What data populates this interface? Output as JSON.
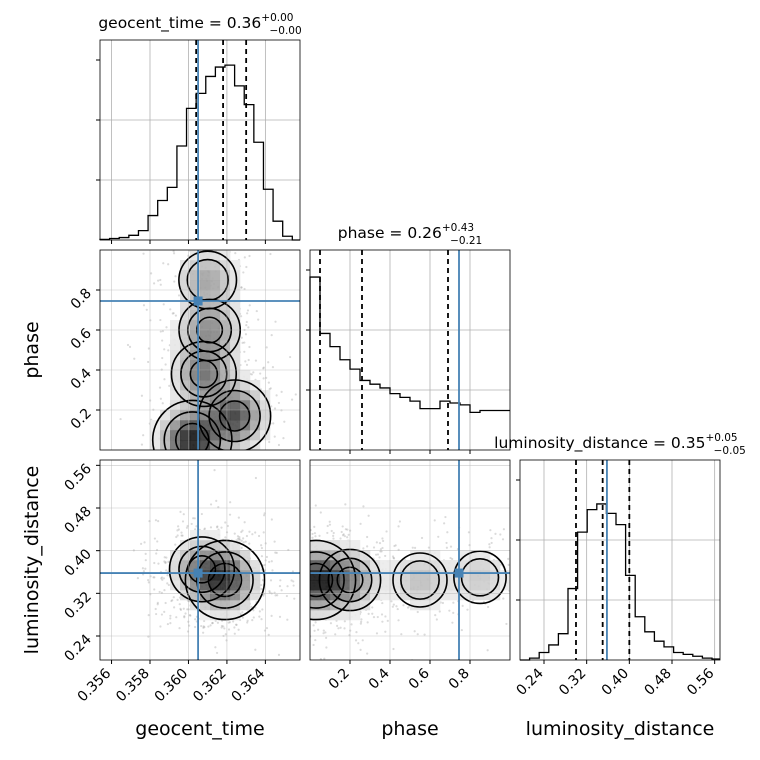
{
  "chart_data": {
    "type": "corner",
    "parameters": [
      "geocent_time",
      "phase",
      "luminosity_distance"
    ],
    "truths": {
      "geocent_time": 0.3605,
      "phase": 0.745,
      "luminosity_distance": 0.358
    },
    "diag_titles": [
      {
        "name": "geocent_time",
        "eq": " = 0.36",
        "sup": "+0.00",
        "sub": "−0.00"
      },
      {
        "name": "phase",
        "eq": " = 0.26",
        "sup": "+0.43",
        "sub": "−0.21"
      },
      {
        "name": "luminosity_distance",
        "eq": " = 0.35",
        "sup": "+0.05",
        "sub": "−0.05"
      }
    ],
    "axes": {
      "geocent_time": {
        "range": [
          0.3554,
          0.3658
        ],
        "ticks": [
          0.356,
          0.358,
          0.36,
          0.362,
          0.364
        ],
        "tick_labels": [
          "0.356",
          "0.358",
          "0.360",
          "0.362",
          "0.364"
        ]
      },
      "phase": {
        "range": [
          0.0,
          1.0
        ],
        "ticks": [
          0.2,
          0.4,
          0.6,
          0.8
        ],
        "tick_labels": [
          "0.2",
          "0.4",
          "0.6",
          "0.8"
        ]
      },
      "luminosity_distance": {
        "range": [
          0.195,
          0.57
        ],
        "ticks": [
          0.24,
          0.32,
          0.4,
          0.48,
          0.56
        ],
        "tick_labels": [
          "0.24",
          "0.32",
          "0.40",
          "0.48",
          "0.56"
        ]
      }
    },
    "histograms": [
      {
        "param": "geocent_time",
        "bin_edges": [
          0.3554,
          0.3559,
          0.3564,
          0.3569,
          0.3574,
          0.3579,
          0.3584,
          0.3589,
          0.3594,
          0.3599,
          0.3604,
          0.3609,
          0.3614,
          0.3619,
          0.3624,
          0.3629,
          0.3634,
          0.3639,
          0.3644,
          0.3649,
          0.3654,
          0.3658
        ],
        "counts": [
          0.003,
          0.008,
          0.013,
          0.025,
          0.05,
          0.13,
          0.21,
          0.28,
          0.5,
          0.7,
          0.78,
          0.87,
          0.92,
          0.93,
          0.82,
          0.72,
          0.52,
          0.27,
          0.1,
          0.02,
          0.0
        ],
        "quantiles": [
          0.3604,
          0.3618,
          0.363
        ]
      },
      {
        "param": "phase",
        "bin_edges": [
          0.0,
          0.05,
          0.1,
          0.15,
          0.2,
          0.25,
          0.3,
          0.35,
          0.4,
          0.45,
          0.5,
          0.55,
          0.6,
          0.65,
          0.7,
          0.75,
          0.8,
          0.85,
          0.9,
          0.95,
          1.0
        ],
        "counts": [
          0.92,
          0.62,
          0.55,
          0.48,
          0.43,
          0.37,
          0.35,
          0.33,
          0.3,
          0.28,
          0.26,
          0.22,
          0.22,
          0.26,
          0.25,
          0.24,
          0.2,
          0.21,
          0.21,
          0.21
        ],
        "quantiles": [
          0.05,
          0.26,
          0.69
        ]
      },
      {
        "param": "luminosity_distance",
        "bin_edges": [
          0.195,
          0.213,
          0.231,
          0.249,
          0.267,
          0.285,
          0.303,
          0.321,
          0.339,
          0.357,
          0.375,
          0.393,
          0.411,
          0.429,
          0.447,
          0.465,
          0.483,
          0.501,
          0.519,
          0.537,
          0.555,
          0.57
        ],
        "counts": [
          0.0,
          0.01,
          0.04,
          0.08,
          0.14,
          0.38,
          0.68,
          0.8,
          0.83,
          0.78,
          0.72,
          0.45,
          0.23,
          0.15,
          0.1,
          0.07,
          0.04,
          0.03,
          0.02,
          0.01,
          0.005
        ],
        "quantiles": [
          0.3,
          0.35,
          0.4
        ]
      }
    ],
    "density_peaks": [
      {
        "x": "geocent_time",
        "y": "phase",
        "peaks": [
          [
            0.3602,
            0.05,
            1.0
          ],
          [
            0.3624,
            0.17,
            0.8
          ],
          [
            0.3608,
            0.38,
            0.6
          ],
          [
            0.3611,
            0.6,
            0.5
          ],
          [
            0.361,
            0.85,
            0.4
          ]
        ]
      },
      {
        "x": "geocent_time",
        "y": "luminosity_distance",
        "peaks": [
          [
            0.3619,
            0.345,
            1.0
          ],
          [
            0.3607,
            0.365,
            0.6
          ]
        ]
      },
      {
        "x": "phase",
        "y": "luminosity_distance",
        "peaks": [
          [
            0.03,
            0.345,
            1.0
          ],
          [
            0.2,
            0.345,
            0.5
          ],
          [
            0.55,
            0.345,
            0.3
          ],
          [
            0.85,
            0.35,
            0.25
          ]
        ]
      }
    ],
    "grid": true
  },
  "colors": {
    "truth": "#4682b4",
    "line": "#000000",
    "grid": "#b0b0b0"
  }
}
